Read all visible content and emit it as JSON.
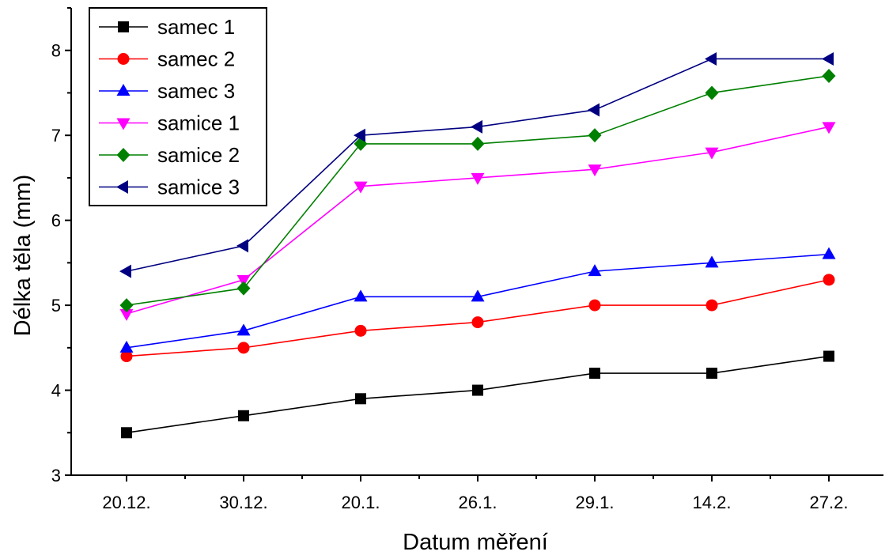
{
  "chart_data": {
    "type": "line",
    "categories": [
      "20.12.",
      "30.12.",
      "20.1.",
      "26.1.",
      "29.1.",
      "14.2.",
      "27.2."
    ],
    "xlabel": "Datum měření",
    "ylabel": "Délka těla (mm)",
    "ylim": [
      3,
      8.5
    ],
    "yticks": [
      3,
      4,
      5,
      6,
      7,
      8
    ],
    "grid": false,
    "legend_position": "top-left",
    "series": [
      {
        "name": "samec 1",
        "color": "#000000",
        "marker": "square",
        "values": [
          3.5,
          3.7,
          3.9,
          4.0,
          4.2,
          4.2,
          4.4
        ]
      },
      {
        "name": "samec 2",
        "color": "#ff0000",
        "marker": "circle",
        "values": [
          4.4,
          4.5,
          4.7,
          4.8,
          5.0,
          5.0,
          5.3
        ]
      },
      {
        "name": "samec 3",
        "color": "#0000ff",
        "marker": "triangle-up",
        "values": [
          4.5,
          4.7,
          5.1,
          5.1,
          5.4,
          5.5,
          5.6
        ]
      },
      {
        "name": "samice 1",
        "color": "#ff00ff",
        "marker": "triangle-down",
        "values": [
          4.9,
          5.3,
          6.4,
          6.5,
          6.6,
          6.8,
          7.1
        ]
      },
      {
        "name": "samice 2",
        "color": "#008000",
        "marker": "diamond",
        "values": [
          5.0,
          5.2,
          6.9,
          6.9,
          7.0,
          7.5,
          7.7
        ]
      },
      {
        "name": "samice 3",
        "color": "#000080",
        "marker": "triangle-left",
        "values": [
          5.4,
          5.7,
          7.0,
          7.1,
          7.3,
          7.9,
          7.9
        ]
      }
    ]
  }
}
